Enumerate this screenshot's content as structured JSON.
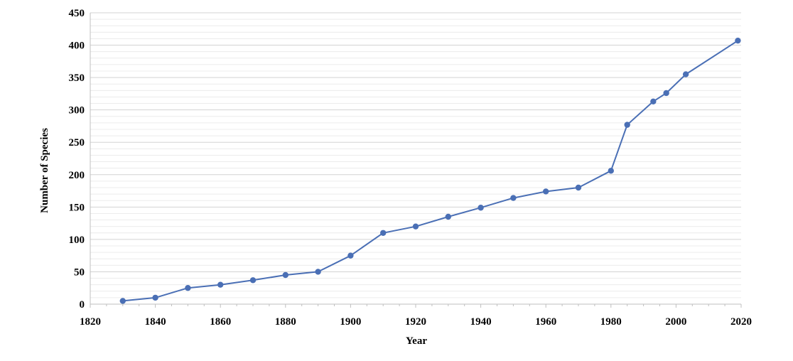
{
  "chart_data": {
    "type": "line",
    "title": "",
    "xlabel": "Year",
    "ylabel": "Number of Species",
    "xlim": [
      1820,
      2020
    ],
    "ylim": [
      0,
      450
    ],
    "x_ticks": [
      1820,
      1840,
      1860,
      1880,
      1900,
      1920,
      1940,
      1960,
      1980,
      2000,
      2020
    ],
    "y_ticks": [
      0,
      50,
      100,
      150,
      200,
      250,
      300,
      350,
      400,
      450
    ],
    "grid": "horizontal",
    "legend": "none",
    "series": [
      {
        "color": "#4a6fb5",
        "x": [
          1830,
          1840,
          1850,
          1860,
          1870,
          1880,
          1890,
          1900,
          1910,
          1920,
          1930,
          1940,
          1950,
          1960,
          1970,
          1980,
          1985,
          1993,
          1997,
          2003,
          2019
        ],
        "y": [
          5,
          10,
          25,
          30,
          37,
          45,
          50,
          75,
          110,
          120,
          135,
          149,
          164,
          174,
          180,
          206,
          277,
          313,
          326,
          355,
          407
        ]
      }
    ]
  }
}
